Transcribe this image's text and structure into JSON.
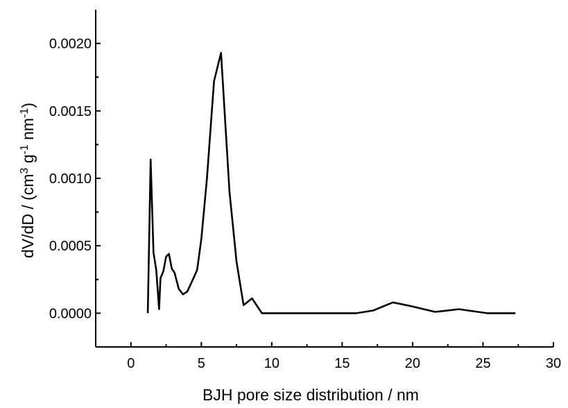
{
  "chart_data": {
    "type": "line",
    "xlabel": "BJH pore size distribution / nm",
    "ylabel": {
      "parts": [
        {
          "text": "dV/dD / (cm",
          "sup": false
        },
        {
          "text": "3",
          "sup": true
        },
        {
          "text": " g",
          "sup": false
        },
        {
          "text": "-1",
          "sup": true
        },
        {
          "text": " nm",
          "sup": false
        },
        {
          "text": "-1",
          "sup": true
        },
        {
          "text": ")",
          "sup": false
        }
      ]
    },
    "xlim": [
      -2.5,
      30
    ],
    "ylim": [
      -0.00025,
      0.00225
    ],
    "xticks": [
      0,
      5,
      10,
      15,
      20,
      25,
      30
    ],
    "xtick_labels": [
      "0",
      "5",
      "10",
      "15",
      "20",
      "25",
      "30"
    ],
    "yticks": [
      0,
      0.0005,
      0.001,
      0.0015,
      0.002
    ],
    "ytick_labels": [
      "0.0000",
      "0.0005",
      "0.0010",
      "0.0015",
      "0.0020"
    ],
    "grid": false,
    "line_color": "#000000",
    "series": [
      {
        "x": [
          1.2,
          1.4,
          1.6,
          1.8,
          2.0,
          2.1,
          2.3,
          2.5,
          2.7,
          2.9,
          3.1,
          3.4,
          3.7,
          4.0,
          4.4,
          4.7,
          5.0,
          5.4,
          5.9,
          6.4,
          7.0,
          7.5,
          8.0,
          8.6,
          9.3,
          10.0,
          12.0,
          14.0,
          16.0,
          17.2,
          18.6,
          20.0,
          21.6,
          23.3,
          25.3,
          27.3
        ],
        "y": [
          0.0,
          0.00114,
          0.00045,
          0.00032,
          3e-05,
          0.00026,
          0.00031,
          0.00042,
          0.00044,
          0.00033,
          0.0003,
          0.00018,
          0.00014,
          0.00016,
          0.00025,
          0.00032,
          0.00055,
          0.001,
          0.00172,
          0.00193,
          0.0009,
          0.00038,
          6e-05,
          0.00011,
          0.0,
          0.0,
          0.0,
          0.0,
          0.0,
          2e-05,
          8e-05,
          5e-05,
          1e-05,
          3e-05,
          0.0,
          0.0
        ]
      }
    ]
  }
}
